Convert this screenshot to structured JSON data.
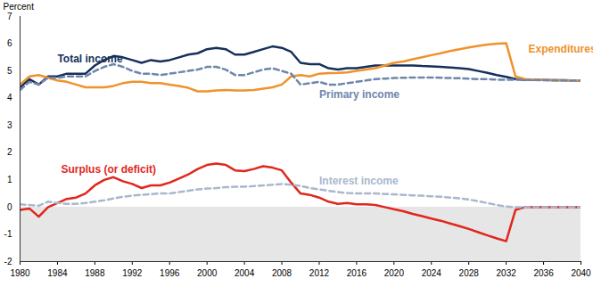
{
  "chart_data": {
    "type": "line",
    "y_label": "Percent",
    "x": [
      1980,
      1981,
      1982,
      1983,
      1984,
      1985,
      1986,
      1987,
      1988,
      1989,
      1990,
      1991,
      1992,
      1993,
      1994,
      1995,
      1996,
      1997,
      1998,
      1999,
      2000,
      2001,
      2002,
      2003,
      2004,
      2005,
      2006,
      2007,
      2008,
      2009,
      2010,
      2011,
      2012,
      2013,
      2014,
      2015,
      2016,
      2017,
      2018,
      2019,
      2020,
      2021,
      2022,
      2023,
      2024,
      2025,
      2026,
      2027,
      2028,
      2029,
      2030,
      2031,
      2032,
      2033,
      2034,
      2035,
      2036,
      2037,
      2038,
      2039,
      2040
    ],
    "xlim": [
      1980,
      2040
    ],
    "xticks": [
      1980,
      1984,
      1988,
      1992,
      1996,
      2000,
      2004,
      2008,
      2012,
      2016,
      2020,
      2024,
      2028,
      2032,
      2036,
      2040
    ],
    "ylim": [
      -2,
      7
    ],
    "yticks": [
      -2,
      -1,
      0,
      1,
      2,
      3,
      4,
      5,
      6,
      7
    ],
    "grid": false,
    "series": [
      {
        "name": "Total income",
        "color": "#16305c",
        "line_style": "solid",
        "values": [
          4.4,
          4.7,
          4.5,
          4.8,
          4.8,
          4.9,
          4.9,
          4.9,
          5.2,
          5.4,
          5.55,
          5.5,
          5.4,
          5.3,
          5.4,
          5.35,
          5.4,
          5.5,
          5.6,
          5.65,
          5.8,
          5.85,
          5.8,
          5.6,
          5.6,
          5.7,
          5.8,
          5.9,
          5.85,
          5.7,
          5.3,
          5.25,
          5.25,
          5.1,
          5.05,
          5.1,
          5.1,
          5.15,
          5.2,
          5.2,
          5.2,
          5.2,
          5.2,
          5.18,
          5.17,
          5.15,
          5.13,
          5.1,
          5.07,
          5.0,
          4.93,
          4.85,
          4.78,
          4.7,
          4.68,
          4.67,
          4.67,
          4.66,
          4.66,
          4.65,
          4.65
        ]
      },
      {
        "name": "Expenditures",
        "color": "#f0922b",
        "line_style": "solid",
        "values": [
          4.5,
          4.8,
          4.85,
          4.75,
          4.65,
          4.6,
          4.5,
          4.4,
          4.4,
          4.4,
          4.45,
          4.55,
          4.6,
          4.6,
          4.55,
          4.55,
          4.5,
          4.45,
          4.38,
          4.25,
          4.25,
          4.28,
          4.3,
          4.28,
          4.28,
          4.3,
          4.35,
          4.4,
          4.5,
          4.8,
          4.85,
          4.8,
          4.9,
          4.92,
          4.93,
          4.95,
          5.0,
          5.05,
          5.1,
          5.2,
          5.3,
          5.35,
          5.43,
          5.5,
          5.58,
          5.65,
          5.73,
          5.8,
          5.86,
          5.92,
          5.97,
          6.0,
          6.02,
          4.8,
          4.7,
          4.68,
          4.67,
          4.66,
          4.66,
          4.65,
          4.65
        ]
      },
      {
        "name": "Primary income",
        "color": "#6f86ab",
        "line_style": "dashed",
        "values": [
          4.3,
          4.6,
          4.5,
          4.75,
          4.75,
          4.8,
          4.8,
          4.8,
          5.0,
          5.15,
          5.25,
          5.15,
          5.0,
          4.9,
          4.9,
          4.85,
          4.9,
          4.95,
          5.0,
          5.05,
          5.15,
          5.15,
          5.05,
          4.85,
          4.85,
          4.95,
          5.05,
          5.1,
          5.0,
          4.9,
          4.5,
          4.55,
          4.6,
          4.5,
          4.5,
          4.55,
          4.6,
          4.65,
          4.7,
          4.72,
          4.74,
          4.75,
          4.76,
          4.76,
          4.76,
          4.75,
          4.74,
          4.73,
          4.72,
          4.7,
          4.7,
          4.68,
          4.68,
          4.68,
          4.67,
          4.67,
          4.66,
          4.66,
          4.65,
          4.65,
          4.65
        ]
      },
      {
        "name": "Surplus (or deficit)",
        "color": "#e1261c",
        "line_style": "solid",
        "values": [
          -0.1,
          -0.05,
          -0.35,
          0.0,
          0.15,
          0.3,
          0.35,
          0.5,
          0.8,
          1.0,
          1.1,
          0.95,
          0.85,
          0.7,
          0.8,
          0.8,
          0.9,
          1.05,
          1.2,
          1.4,
          1.55,
          1.6,
          1.55,
          1.35,
          1.32,
          1.4,
          1.5,
          1.45,
          1.35,
          0.9,
          0.5,
          0.45,
          0.35,
          0.2,
          0.12,
          0.15,
          0.1,
          0.1,
          0.08,
          0.0,
          -0.08,
          -0.15,
          -0.25,
          -0.33,
          -0.42,
          -0.5,
          -0.6,
          -0.7,
          -0.8,
          -0.92,
          -1.04,
          -1.15,
          -1.25,
          -0.1,
          0,
          0,
          0,
          0,
          0,
          0,
          0
        ]
      },
      {
        "name": "Interest income",
        "color": "#a9b8cd",
        "line_style": "dashed",
        "values": [
          0.1,
          0.08,
          0.05,
          0.2,
          0.15,
          0.12,
          0.12,
          0.15,
          0.2,
          0.25,
          0.32,
          0.38,
          0.42,
          0.45,
          0.48,
          0.5,
          0.5,
          0.55,
          0.6,
          0.65,
          0.68,
          0.7,
          0.73,
          0.75,
          0.75,
          0.77,
          0.8,
          0.82,
          0.85,
          0.82,
          0.78,
          0.7,
          0.65,
          0.6,
          0.55,
          0.52,
          0.5,
          0.5,
          0.5,
          0.48,
          0.47,
          0.45,
          0.43,
          0.42,
          0.4,
          0.38,
          0.35,
          0.32,
          0.28,
          0.22,
          0.15,
          0.08,
          0.02,
          0,
          0,
          0,
          0,
          0,
          0,
          0,
          0
        ]
      }
    ]
  }
}
